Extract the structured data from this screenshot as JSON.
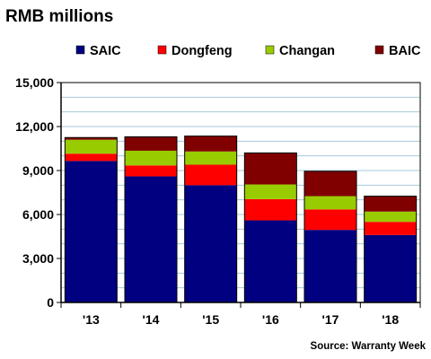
{
  "chart_data": {
    "type": "bar",
    "stacked": true,
    "title": "RMB millions",
    "source": "Source: Warranty Week",
    "categories": [
      "'13",
      "'14",
      "'15",
      "'16",
      "'17",
      "'18"
    ],
    "series": [
      {
        "name": "SAIC",
        "color": "#000080",
        "values": [
          9650,
          8600,
          8000,
          5600,
          4950,
          4600
        ]
      },
      {
        "name": "Dongfeng",
        "color": "#ff0000",
        "values": [
          500,
          750,
          1400,
          1450,
          1400,
          900
        ]
      },
      {
        "name": "Changan",
        "color": "#99cc00",
        "values": [
          950,
          1000,
          900,
          1000,
          900,
          700
        ]
      },
      {
        "name": "BAIC",
        "color": "#800000",
        "values": [
          150,
          950,
          1050,
          2150,
          1700,
          1050
        ]
      }
    ],
    "ylim": [
      0,
      15000
    ],
    "yticks": [
      0,
      3000,
      6000,
      9000,
      12000,
      15000
    ],
    "ytick_labels": [
      "0",
      "3,000",
      "6,000",
      "9,000",
      "12,000",
      "15,000"
    ],
    "grid": true,
    "grid_color": "#a6cad8",
    "legend_position": "top"
  }
}
